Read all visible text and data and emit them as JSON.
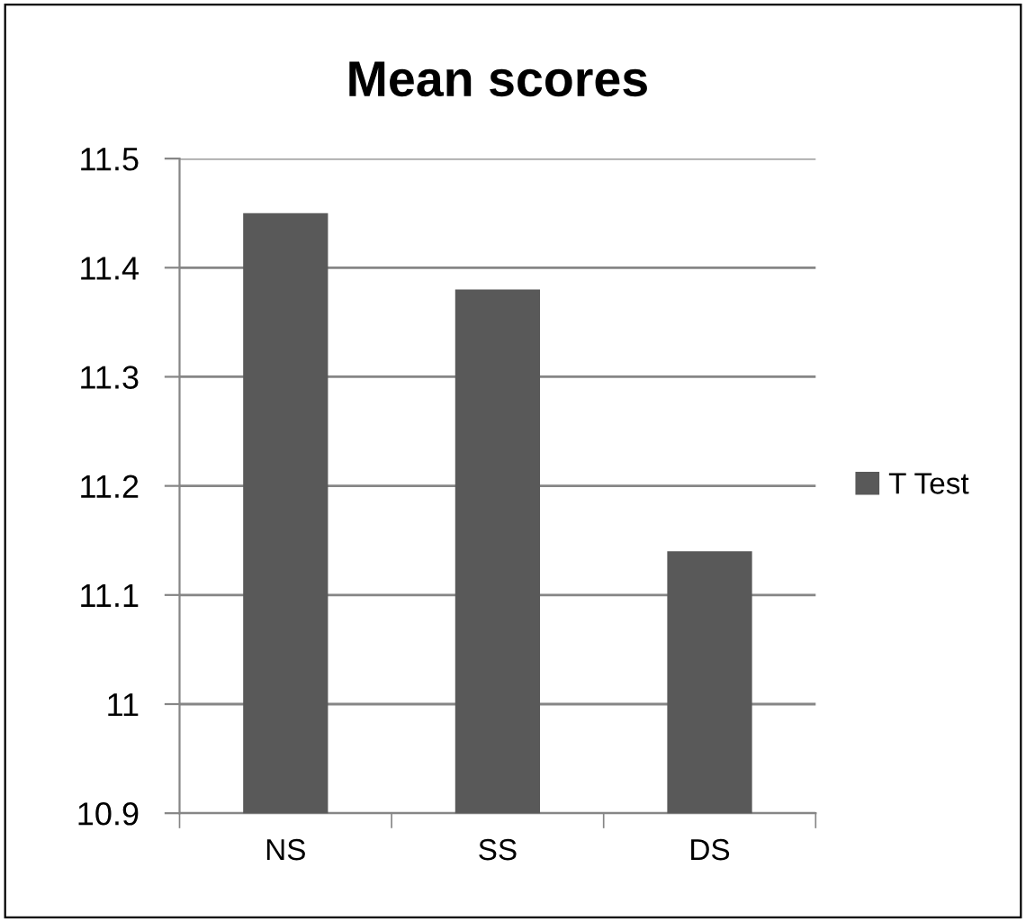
{
  "chart_data": {
    "type": "bar",
    "title": "Mean scores",
    "categories": [
      "NS",
      "SS",
      "DS"
    ],
    "series": [
      {
        "name": "T Test",
        "color": "#595959",
        "values": [
          11.45,
          11.38,
          11.14
        ]
      }
    ],
    "ylim": [
      10.9,
      11.5
    ],
    "yticks": [
      {
        "value": 10.9,
        "label": "10.9"
      },
      {
        "value": 11,
        "label": "11"
      },
      {
        "value": 11.1,
        "label": "11.1"
      },
      {
        "value": 11.2,
        "label": "11.2"
      },
      {
        "value": 11.3,
        "label": "11.3"
      },
      {
        "value": 11.4,
        "label": "11.4"
      },
      {
        "value": 11.5,
        "label": "11.5"
      }
    ],
    "grid": "y",
    "legend": "right"
  }
}
